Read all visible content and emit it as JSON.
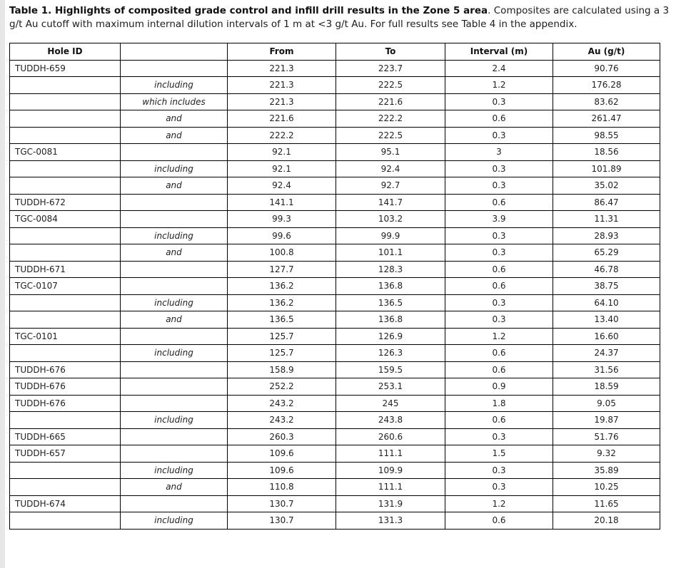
{
  "caption": {
    "bold": "Table 1. Highlights of composited grade control and infill drill results in the Zone 5 area",
    "rest": ". Composites are calculated using a 3 g/t Au cutoff with maximum internal dilution intervals of 1 m at <3 g/t Au. For full results see Table 4 in the appendix."
  },
  "colors": {
    "page_background": "#ffffff",
    "left_edge_strip": "#e7e7e7",
    "table_border": "#000000",
    "text": "#1d1d1d"
  },
  "table": {
    "columns": [
      "Hole ID",
      "",
      "From",
      "To",
      "Interval (m)",
      "Au (g/t)"
    ],
    "rows": [
      [
        "TUDDH-659",
        "",
        "221.3",
        "223.7",
        "2.4",
        "90.76"
      ],
      [
        "",
        "including",
        "221.3",
        "222.5",
        "1.2",
        "176.28"
      ],
      [
        "",
        "which includes",
        "221.3",
        "221.6",
        "0.3",
        "83.62"
      ],
      [
        "",
        "and",
        "221.6",
        "222.2",
        "0.6",
        "261.47"
      ],
      [
        "",
        "and",
        "222.2",
        "222.5",
        "0.3",
        "98.55"
      ],
      [
        "TGC-0081",
        "",
        "92.1",
        "95.1",
        "3",
        "18.56"
      ],
      [
        "",
        "including",
        "92.1",
        "92.4",
        "0.3",
        "101.89"
      ],
      [
        "",
        "and",
        "92.4",
        "92.7",
        "0.3",
        "35.02"
      ],
      [
        "TUDDH-672",
        "",
        "141.1",
        "141.7",
        "0.6",
        "86.47"
      ],
      [
        "TGC-0084",
        "",
        "99.3",
        "103.2",
        "3.9",
        "11.31"
      ],
      [
        "",
        "including",
        "99.6",
        "99.9",
        "0.3",
        "28.93"
      ],
      [
        "",
        "and",
        "100.8",
        "101.1",
        "0.3",
        "65.29"
      ],
      [
        "TUDDH-671",
        "",
        "127.7",
        "128.3",
        "0.6",
        "46.78"
      ],
      [
        "TGC-0107",
        "",
        "136.2",
        "136.8",
        "0.6",
        "38.75"
      ],
      [
        "",
        "including",
        "136.2",
        "136.5",
        "0.3",
        "64.10"
      ],
      [
        "",
        "and",
        "136.5",
        "136.8",
        "0.3",
        "13.40"
      ],
      [
        "TGC-0101",
        "",
        "125.7",
        "126.9",
        "1.2",
        "16.60"
      ],
      [
        "",
        "including",
        "125.7",
        "126.3",
        "0.6",
        "24.37"
      ],
      [
        "TUDDH-676",
        "",
        "158.9",
        "159.5",
        "0.6",
        "31.56"
      ],
      [
        "TUDDH-676",
        "",
        "252.2",
        "253.1",
        "0.9",
        "18.59"
      ],
      [
        "TUDDH-676",
        "",
        "243.2",
        "245",
        "1.8",
        "9.05"
      ],
      [
        "",
        "including",
        "243.2",
        "243.8",
        "0.6",
        "19.87"
      ],
      [
        "TUDDH-665",
        "",
        "260.3",
        "260.6",
        "0.3",
        "51.76"
      ],
      [
        "TUDDH-657",
        "",
        "109.6",
        "111.1",
        "1.5",
        "9.32"
      ],
      [
        "",
        "including",
        "109.6",
        "109.9",
        "0.3",
        "35.89"
      ],
      [
        "",
        "and",
        "110.8",
        "111.1",
        "0.3",
        "10.25"
      ],
      [
        "TUDDH-674",
        "",
        "130.7",
        "131.9",
        "1.2",
        "11.65"
      ],
      [
        "",
        "including",
        "130.7",
        "131.3",
        "0.6",
        "20.18"
      ]
    ]
  }
}
